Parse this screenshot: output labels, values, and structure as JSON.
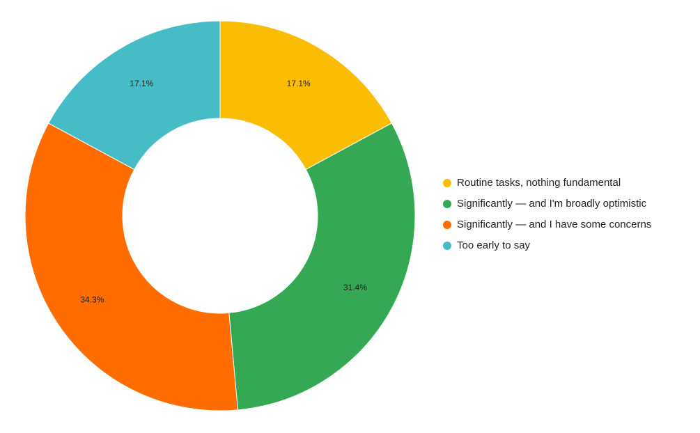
{
  "chart_data": {
    "type": "donut",
    "categories": [
      "Routine tasks, nothing fundamental",
      "Significantly — and I'm broadly optimistic",
      "Significantly — and I have some concerns",
      "Too early to say"
    ],
    "values": [
      17.1,
      31.4,
      34.3,
      17.1
    ],
    "value_labels": [
      "17.1%",
      "31.4%",
      "34.3%",
      "17.1%"
    ],
    "colors": [
      "#fbbc04",
      "#34a853",
      "#ff6d01",
      "#46bdc6"
    ],
    "legend": "right"
  }
}
